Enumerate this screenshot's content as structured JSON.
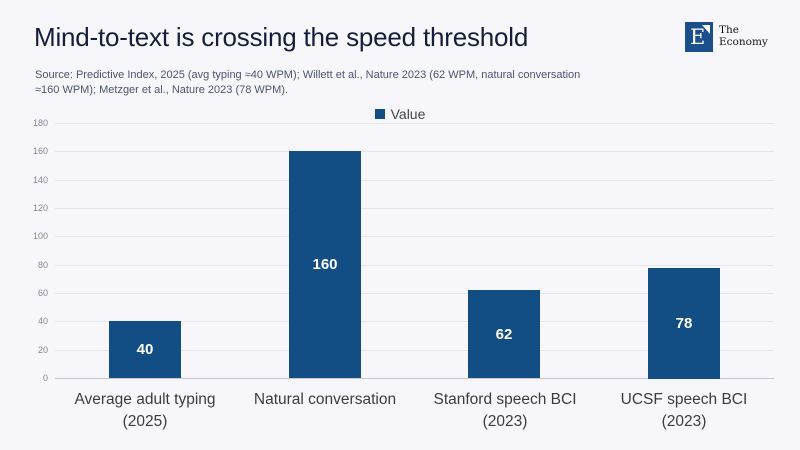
{
  "header": {
    "title": "Mind-to-text is crossing the speed threshold",
    "source_line1": "Source: Predictive Index, 2025 (avg typing ≈40 WPM); Willett et al., Nature 2023 (62 WPM, natural conversation",
    "source_line2": "≈160 WPM); Metzger et al., Nature 2023 (78 WPM).",
    "logo": {
      "monogram": "E",
      "name_top": "The",
      "name_bottom": "Economy"
    }
  },
  "legend": {
    "label": "Value"
  },
  "chart_data": {
    "type": "bar",
    "title": "Mind-to-text is crossing the speed threshold",
    "series_name": "Value",
    "categories": [
      "Average adult typing\n(2025)",
      "Natural conversation",
      "Stanford speech BCI\n(2023)",
      "UCSF speech BCI\n(2023)"
    ],
    "values": [
      40,
      160,
      62,
      78
    ],
    "ylim": [
      0,
      180
    ],
    "ytick_step": 20,
    "ytick_labels": [
      "0",
      "20",
      "40",
      "60",
      "80",
      "100",
      "120",
      "140",
      "160",
      "180"
    ],
    "grid": true,
    "legend_position": "top-center",
    "xlabel": "",
    "ylabel": "",
    "colors": {
      "bar": "#124e83",
      "value_label": "#ffffff",
      "gridline": "#e5e5ed",
      "zero_line": "#c4c5ce",
      "background": "#f7f7fb",
      "title": "#141e3c"
    }
  }
}
